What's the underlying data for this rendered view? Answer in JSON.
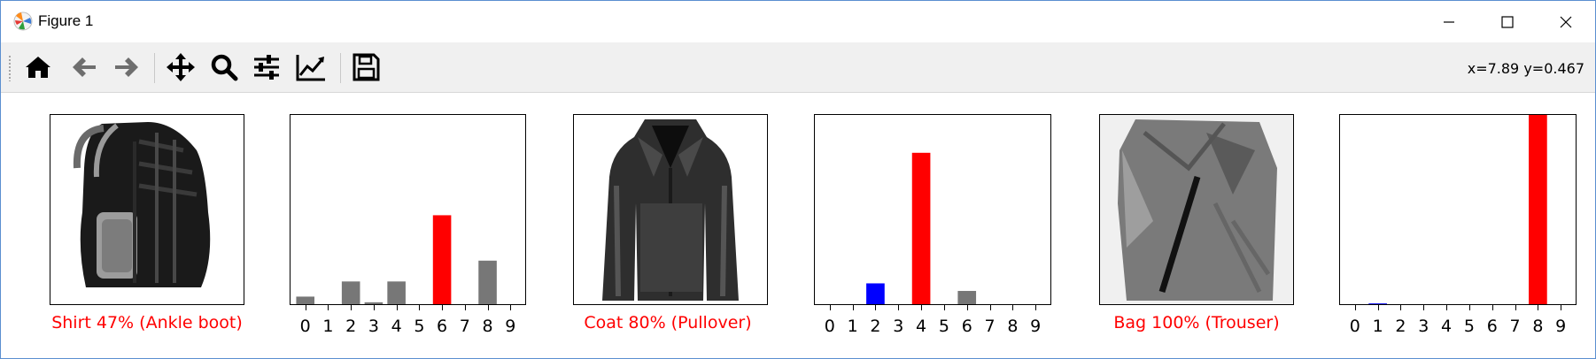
{
  "window": {
    "title": "Figure 1"
  },
  "toolbar": {
    "buttons": [
      {
        "name": "home-button",
        "icon": "home-icon"
      },
      {
        "name": "back-button",
        "icon": "arrow-left-icon"
      },
      {
        "name": "forward-button",
        "icon": "arrow-right-icon"
      },
      {
        "name": "pan-button",
        "icon": "move-icon"
      },
      {
        "name": "zoom-button",
        "icon": "magnifier-icon"
      },
      {
        "name": "configure-subplots-button",
        "icon": "sliders-icon"
      },
      {
        "name": "edit-axis-button",
        "icon": "line-chart-icon"
      },
      {
        "name": "save-button",
        "icon": "floppy-icon"
      }
    ],
    "coords": "x=7.89 y=0.467"
  },
  "panels": [
    {
      "image": "backpack-image",
      "label": "Shirt 47% (Ankle boot)"
    },
    {
      "image": "coat-image",
      "label": "Coat 80% (Pullover)"
    },
    {
      "image": "shirt-image",
      "label": "Bag 100% (Trouser)"
    }
  ],
  "chart_data": [
    {
      "type": "bar",
      "categories": [
        "0",
        "1",
        "2",
        "3",
        "4",
        "5",
        "6",
        "7",
        "8",
        "9"
      ],
      "values": [
        0.04,
        0,
        0.12,
        0.01,
        0.12,
        0,
        0.47,
        0,
        0.23,
        0
      ],
      "colors": [
        "#777777",
        "#777777",
        "#777777",
        "#777777",
        "#777777",
        "#777777",
        "#ff0000",
        "#777777",
        "#777777",
        "#0000ff"
      ],
      "ylim": [
        0,
        1
      ],
      "xlabel": "",
      "ylabel": ""
    },
    {
      "type": "bar",
      "categories": [
        "0",
        "1",
        "2",
        "3",
        "4",
        "5",
        "6",
        "7",
        "8",
        "9"
      ],
      "values": [
        0,
        0,
        0.11,
        0,
        0.8,
        0,
        0.07,
        0,
        0,
        0
      ],
      "colors": [
        "#777777",
        "#777777",
        "#0000ff",
        "#777777",
        "#ff0000",
        "#777777",
        "#777777",
        "#777777",
        "#777777",
        "#777777"
      ],
      "ylim": [
        0,
        1
      ],
      "xlabel": "",
      "ylabel": ""
    },
    {
      "type": "bar",
      "categories": [
        "0",
        "1",
        "2",
        "3",
        "4",
        "5",
        "6",
        "7",
        "8",
        "9"
      ],
      "values": [
        0,
        0.004,
        0,
        0,
        0,
        0,
        0,
        0,
        1.0,
        0
      ],
      "colors": [
        "#777777",
        "#0000ff",
        "#777777",
        "#777777",
        "#777777",
        "#777777",
        "#777777",
        "#777777",
        "#ff0000",
        "#777777"
      ],
      "ylim": [
        0,
        1
      ],
      "xlabel": "",
      "ylabel": ""
    }
  ],
  "colors": {
    "predicted_wrong": "#ff0000",
    "true_label": "#0000ff",
    "other": "#777777"
  }
}
